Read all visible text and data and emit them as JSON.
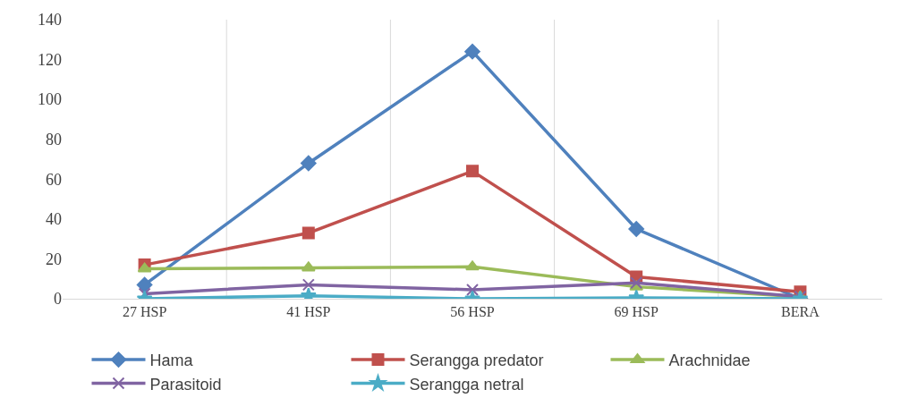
{
  "chart_data": {
    "type": "line",
    "categories": [
      "27 HSP",
      "41 HSP",
      "56 HSP",
      "69 HSP",
      "BERA"
    ],
    "ylim": [
      0,
      140
    ],
    "yticks": [
      0,
      20,
      40,
      60,
      80,
      100,
      120,
      140
    ],
    "grid": "x",
    "legend": "bottom",
    "series": [
      {
        "name": "Hama",
        "color": "#4f81bd",
        "marker": "diamond",
        "values": [
          7,
          68,
          124,
          35,
          0
        ]
      },
      {
        "name": "Serangga predator",
        "color": "#c0504d",
        "marker": "square",
        "values": [
          17,
          33,
          64,
          11,
          3.5
        ]
      },
      {
        "name": "Arachnidae",
        "color": "#9bbb59",
        "marker": "triangle",
        "values": [
          15,
          15.5,
          16,
          6,
          1
        ]
      },
      {
        "name": "Parasitoid",
        "color": "#8064a2",
        "marker": "cross",
        "values": [
          2.5,
          7,
          4.5,
          8,
          1
        ]
      },
      {
        "name": "Serangga netral",
        "color": "#4bacc6",
        "marker": "star",
        "values": [
          0,
          1.5,
          0,
          0.5,
          0
        ]
      }
    ]
  }
}
